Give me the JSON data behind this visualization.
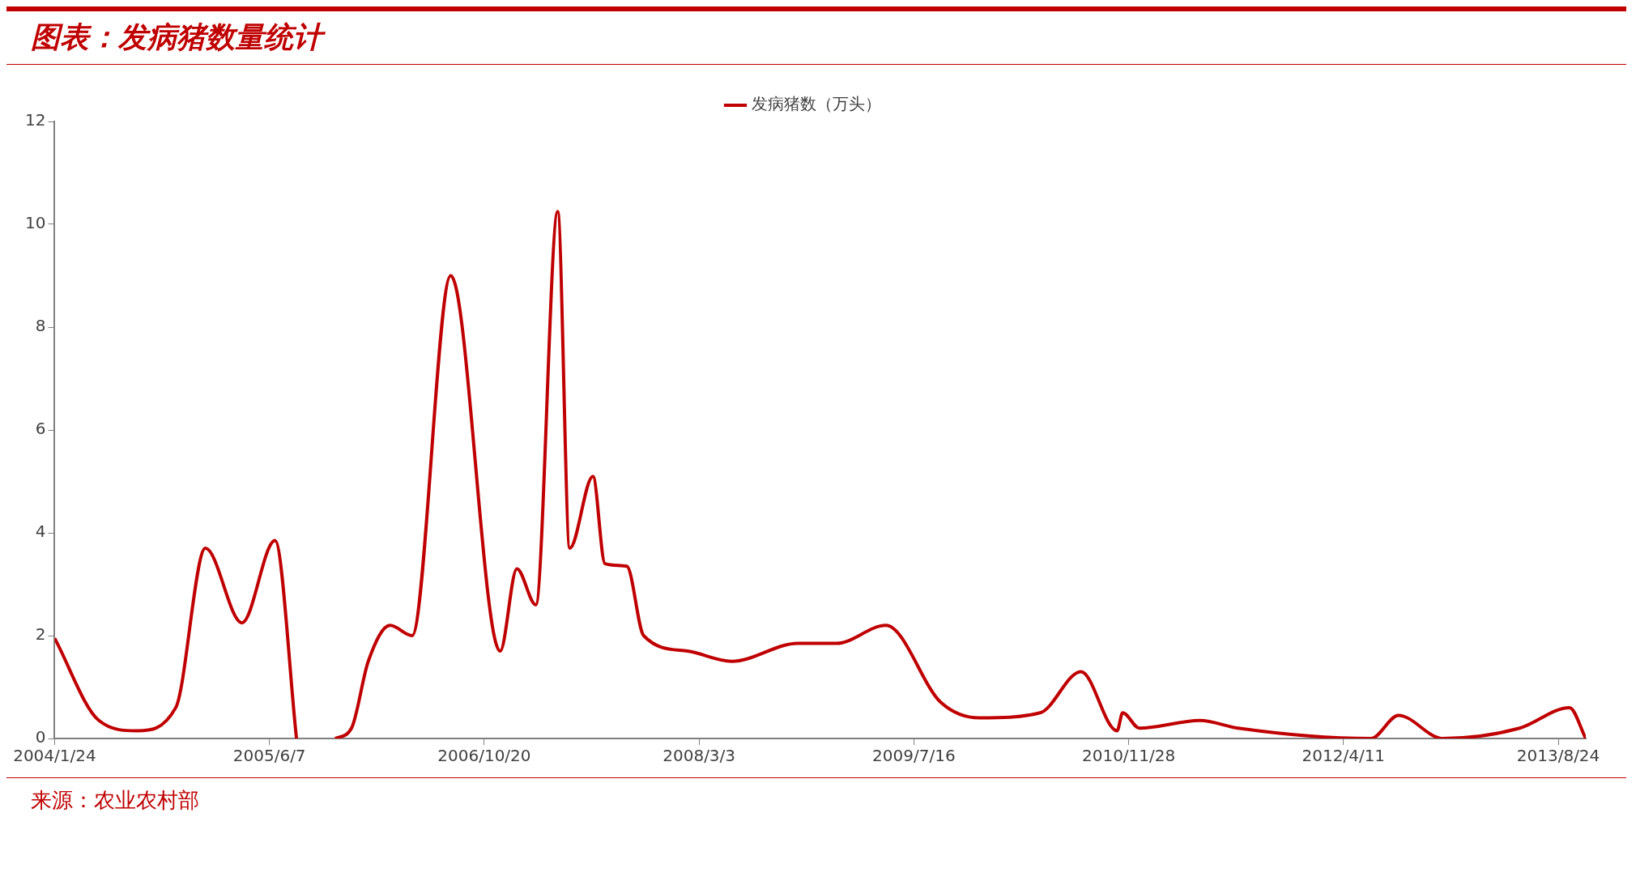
{
  "chart_data": {
    "type": "line",
    "title": "图表：发病猪数量统计",
    "annotations": [
      "来源：农业农村部"
    ],
    "x": [
      "2004-01-24",
      "2004-05-06",
      "2004-08-03",
      "2004-11-01",
      "2005-01-09",
      "2005-04-04",
      "2005-06-20",
      "2005-08-09",
      "2005-09-20",
      "2005-11-07",
      "2005-12-15",
      "2006-01-23",
      "2006-03-15",
      "2006-05-05",
      "2006-08-03",
      "2006-11-26",
      "2007-01-04",
      "2007-02-17",
      "2007-04-09",
      "2007-05-07",
      "2007-06-30",
      "2007-07-28",
      "2007-09-17",
      "2007-10-26",
      "2008-02-05",
      "2008-05-18",
      "2008-10-19",
      "2009-01-17",
      "2009-05-12",
      "2009-09-17",
      "2009-12-16",
      "2010-05-06",
      "2010-08-09",
      "2010-11-01",
      "2010-11-14",
      "2010-12-23",
      "2011-05-13",
      "2011-08-10",
      "2012-06-14",
      "2012-08-17",
      "2012-11-28",
      "2013-05-26",
      "2013-09-19",
      "2013-10-27"
    ],
    "series": [
      {
        "name": "发病猪数（万头）",
        "color": "#c00000",
        "values": [
          1.95,
          0.35,
          0.15,
          0.6,
          3.7,
          2.25,
          3.85,
          0,
          null,
          0,
          0.2,
          1.5,
          2.2,
          2.0,
          9.0,
          1.7,
          3.3,
          2.6,
          10.25,
          3.7,
          5.1,
          3.4,
          3.35,
          2.0,
          1.7,
          1.5,
          1.85,
          1.85,
          2.2,
          0.7,
          0.4,
          0.5,
          1.3,
          0.15,
          0.5,
          0.2,
          0.35,
          0.2,
          0,
          0.45,
          0,
          0.2,
          0.6,
          0
        ]
      }
    ],
    "xlim": [
      "2004-01-24",
      "2013-10-27"
    ],
    "xticks": [
      {
        "value": "2004-01-24",
        "label": "2004/1/24"
      },
      {
        "value": "2005-06-07",
        "label": "2005/6/7"
      },
      {
        "value": "2006-10-20",
        "label": "2006/10/20"
      },
      {
        "value": "2008-03-03",
        "label": "2008/3/3"
      },
      {
        "value": "2009-07-16",
        "label": "2009/7/16"
      },
      {
        "value": "2010-11-28",
        "label": "2010/11/28"
      },
      {
        "value": "2012-04-11",
        "label": "2012/4/11"
      },
      {
        "value": "2013-08-24",
        "label": "2013/8/24"
      }
    ],
    "ylim": [
      0,
      12
    ],
    "yticks": [
      0,
      2,
      4,
      6,
      8,
      10,
      12
    ],
    "grid": false,
    "legend": "top",
    "marker": "none",
    "line_style": "solid"
  }
}
